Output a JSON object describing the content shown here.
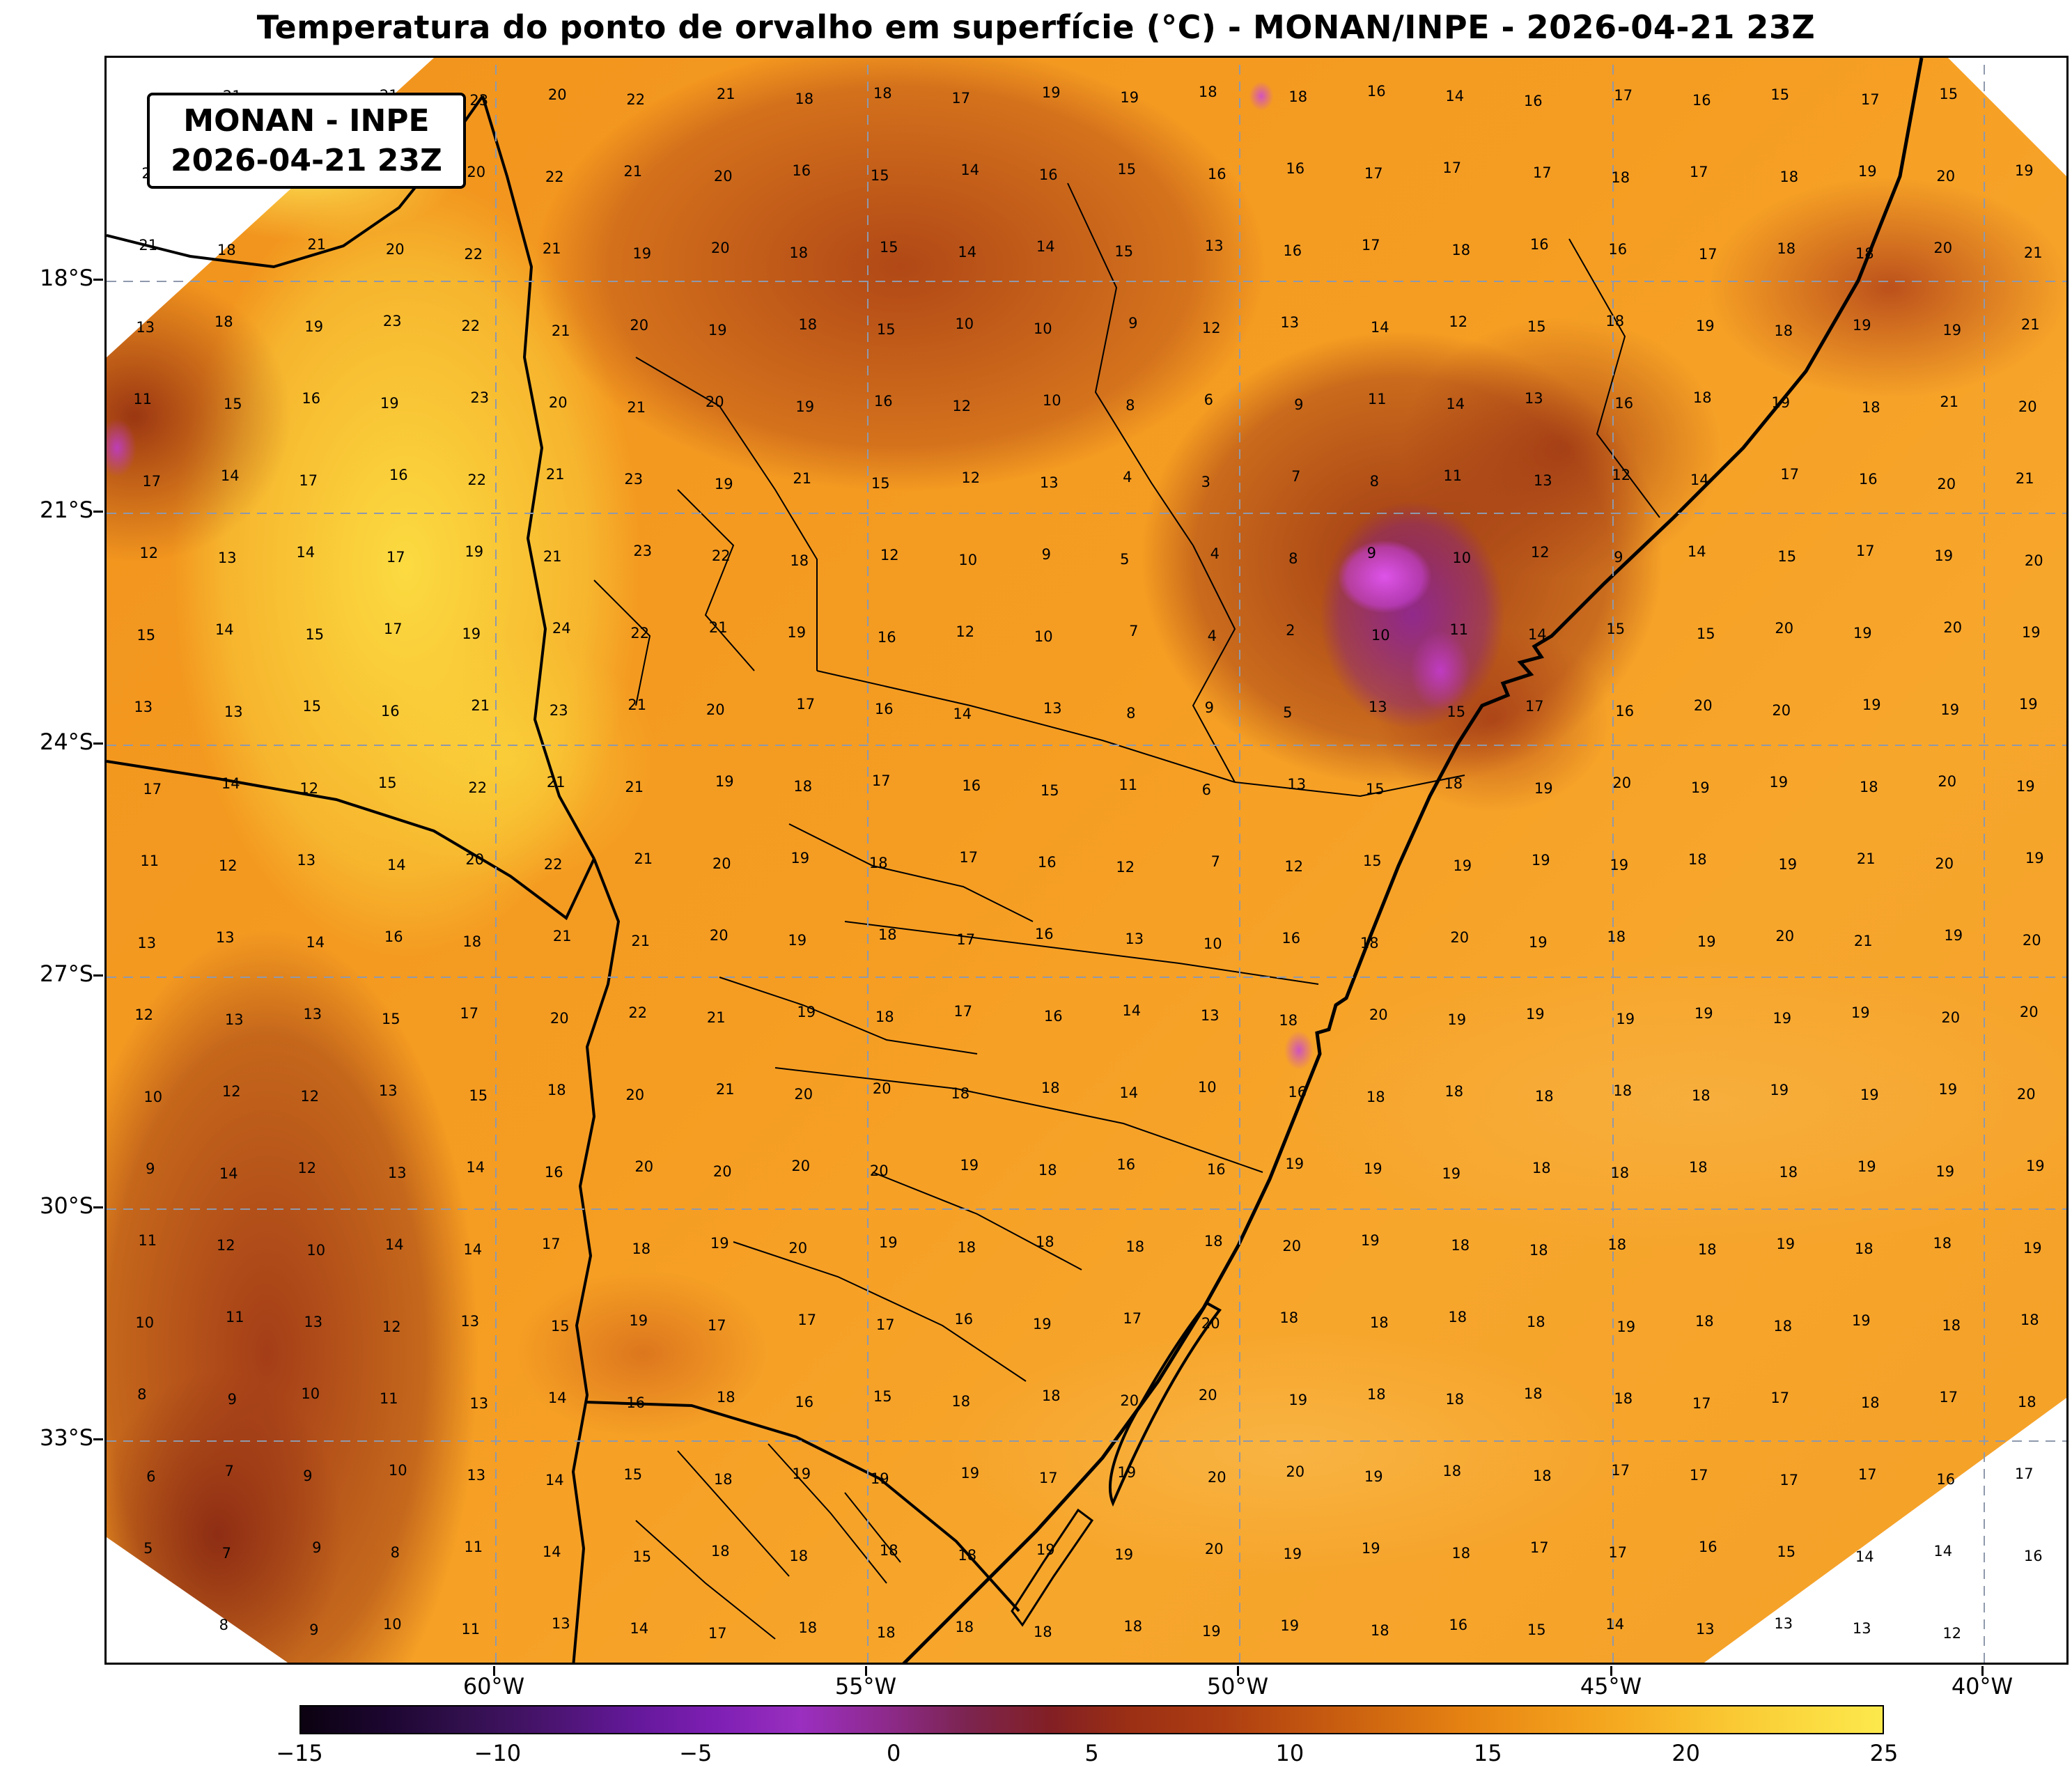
{
  "title": "Temperatura do ponto de orvalho em superfície (°C) - MONAN/INPE - 2026-04-21 23Z",
  "info_box": {
    "line1": "MONAN - INPE",
    "line2": "2026-04-21 23Z"
  },
  "map": {
    "lat_ticks": [
      "18°S",
      "21°S",
      "24°S",
      "27°S",
      "30°S",
      "33°S"
    ],
    "lon_ticks": [
      "60°W",
      "55°W",
      "50°W",
      "45°W",
      "40°W"
    ]
  },
  "colorbar": {
    "ticks": [
      "−15",
      "−10",
      "−5",
      "0",
      "5",
      "10",
      "15",
      "20",
      "25"
    ],
    "range": [
      -15,
      25
    ],
    "units": "°C",
    "colors": [
      "#0b0210",
      "#1c0630",
      "#32104e",
      "#4a1470",
      "#64189a",
      "#7e1fb4",
      "#9a2fc0",
      "#8e2a8e",
      "#7c2450",
      "#821f24",
      "#9c3014",
      "#ac3c12",
      "#c05310",
      "#d26a10",
      "#e68312",
      "#f0991a",
      "#f6ad22",
      "#f9c530",
      "#fbd83e",
      "#fce94c"
    ]
  },
  "chart_data": {
    "type": "heatmap",
    "title": "Temperatura do ponto de orvalho em superfície (°C) - MONAN/INPE - 2026-04-21 23Z",
    "variable": "Temperatura do ponto de orvalho em superfície",
    "units": "°C",
    "model": "MONAN/INPE",
    "valid_time": "2026-04-21 23Z",
    "lon_range_deg_w": [
      63,
      39.5
    ],
    "lat_range_deg_s": [
      15,
      36
    ],
    "colorbar_range": [
      -15,
      25
    ],
    "grid_note": "Station-style plotted dew point values (°C), 21 rows x 24 cols, west-to-east / north-to-south; null = outside data octagon",
    "grid_values": [
      [
        null,
        21,
        22,
        21,
        23,
        20,
        22,
        21,
        18,
        18,
        17,
        19,
        19,
        18,
        18,
        16,
        14,
        16,
        17,
        16,
        15,
        17,
        15,
        null
      ],
      [
        22,
        23,
        21,
        22,
        20,
        22,
        21,
        20,
        16,
        15,
        14,
        16,
        15,
        16,
        16,
        17,
        17,
        17,
        18,
        17,
        18,
        19,
        20,
        19
      ],
      [
        21,
        18,
        21,
        20,
        22,
        21,
        19,
        20,
        18,
        15,
        14,
        14,
        15,
        13,
        16,
        17,
        18,
        16,
        16,
        17,
        18,
        18,
        20,
        21
      ],
      [
        13,
        18,
        19,
        23,
        22,
        21,
        20,
        19,
        18,
        15,
        10,
        10,
        9,
        12,
        13,
        14,
        12,
        15,
        18,
        19,
        18,
        19,
        19,
        21
      ],
      [
        11,
        15,
        16,
        19,
        23,
        20,
        21,
        20,
        19,
        16,
        12,
        10,
        8,
        6,
        9,
        11,
        14,
        13,
        16,
        18,
        19,
        18,
        21,
        20
      ],
      [
        17,
        14,
        17,
        16,
        22,
        21,
        23,
        19,
        21,
        15,
        12,
        13,
        4,
        3,
        7,
        8,
        11,
        13,
        12,
        14,
        17,
        16,
        20,
        21
      ],
      [
        12,
        13,
        14,
        17,
        19,
        21,
        23,
        22,
        18,
        12,
        10,
        9,
        5,
        4,
        8,
        9,
        10,
        12,
        9,
        14,
        15,
        17,
        19,
        20
      ],
      [
        15,
        14,
        15,
        17,
        19,
        24,
        22,
        21,
        19,
        16,
        12,
        10,
        7,
        4,
        2,
        10,
        11,
        14,
        15,
        15,
        20,
        19,
        20,
        19
      ],
      [
        13,
        13,
        15,
        16,
        21,
        23,
        21,
        20,
        17,
        16,
        14,
        13,
        8,
        9,
        5,
        13,
        15,
        17,
        16,
        20,
        20,
        19,
        19,
        19
      ],
      [
        17,
        14,
        12,
        15,
        22,
        21,
        21,
        19,
        18,
        17,
        16,
        15,
        11,
        6,
        13,
        15,
        18,
        19,
        20,
        19,
        19,
        18,
        20,
        19
      ],
      [
        11,
        12,
        13,
        14,
        20,
        22,
        21,
        20,
        19,
        18,
        17,
        16,
        12,
        7,
        12,
        15,
        19,
        19,
        19,
        18,
        19,
        21,
        20,
        19
      ],
      [
        13,
        13,
        14,
        16,
        18,
        21,
        21,
        20,
        19,
        18,
        17,
        16,
        13,
        10,
        16,
        18,
        20,
        19,
        18,
        19,
        20,
        21,
        19,
        20
      ],
      [
        12,
        13,
        13,
        15,
        17,
        20,
        22,
        21,
        19,
        18,
        17,
        16,
        14,
        13,
        18,
        20,
        19,
        19,
        19,
        19,
        19,
        19,
        20,
        20
      ],
      [
        10,
        12,
        12,
        13,
        15,
        18,
        20,
        21,
        20,
        20,
        18,
        18,
        14,
        10,
        16,
        18,
        18,
        18,
        18,
        18,
        19,
        19,
        19,
        20
      ],
      [
        9,
        14,
        12,
        13,
        14,
        16,
        20,
        20,
        20,
        20,
        19,
        18,
        16,
        16,
        19,
        19,
        19,
        18,
        18,
        18,
        18,
        19,
        19,
        19
      ],
      [
        11,
        12,
        10,
        14,
        14,
        17,
        18,
        19,
        20,
        19,
        18,
        18,
        18,
        18,
        20,
        19,
        18,
        18,
        18,
        18,
        19,
        18,
        18,
        19
      ],
      [
        10,
        11,
        13,
        12,
        13,
        15,
        19,
        17,
        17,
        17,
        16,
        19,
        17,
        20,
        18,
        18,
        18,
        18,
        19,
        18,
        18,
        19,
        18,
        18
      ],
      [
        8,
        9,
        10,
        11,
        13,
        14,
        16,
        18,
        16,
        15,
        18,
        18,
        20,
        20,
        19,
        18,
        18,
        18,
        18,
        17,
        17,
        18,
        17,
        18
      ],
      [
        6,
        7,
        9,
        10,
        13,
        14,
        15,
        18,
        19,
        19,
        19,
        17,
        19,
        20,
        20,
        19,
        18,
        18,
        17,
        17,
        17,
        17,
        16,
        17
      ],
      [
        5,
        7,
        9,
        8,
        11,
        14,
        15,
        18,
        18,
        18,
        18,
        19,
        19,
        20,
        19,
        19,
        18,
        17,
        17,
        16,
        15,
        14,
        14,
        16
      ],
      [
        null,
        8,
        9,
        10,
        11,
        13,
        14,
        17,
        18,
        18,
        18,
        18,
        18,
        19,
        19,
        18,
        16,
        15,
        14,
        13,
        13,
        13,
        12,
        null
      ]
    ]
  }
}
